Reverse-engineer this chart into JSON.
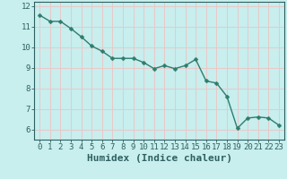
{
  "x": [
    0,
    1,
    2,
    3,
    4,
    5,
    6,
    7,
    8,
    9,
    10,
    11,
    12,
    13,
    14,
    15,
    16,
    17,
    18,
    19,
    20,
    21,
    22,
    23
  ],
  "y": [
    11.55,
    11.25,
    11.25,
    10.9,
    10.5,
    10.05,
    9.8,
    9.45,
    9.45,
    9.45,
    9.25,
    8.95,
    9.1,
    8.95,
    9.1,
    9.4,
    8.35,
    8.25,
    7.6,
    6.05,
    6.55,
    6.6,
    6.55,
    6.2
  ],
  "line_color": "#2e7d6e",
  "marker": "D",
  "marker_size": 2.5,
  "bg_color": "#c8eeee",
  "grid_color": "#e8c8c8",
  "xlabel": "Humidex (Indice chaleur)",
  "ylim": [
    5.5,
    12.2
  ],
  "xlim": [
    -0.5,
    23.5
  ],
  "yticks": [
    6,
    7,
    8,
    9,
    10,
    11,
    12
  ],
  "xticks": [
    0,
    1,
    2,
    3,
    4,
    5,
    6,
    7,
    8,
    9,
    10,
    11,
    12,
    13,
    14,
    15,
    16,
    17,
    18,
    19,
    20,
    21,
    22,
    23
  ],
  "tick_color": "#2e6060",
  "label_fontsize": 6.5,
  "xlabel_fontsize": 8.0,
  "line_width": 1.0
}
